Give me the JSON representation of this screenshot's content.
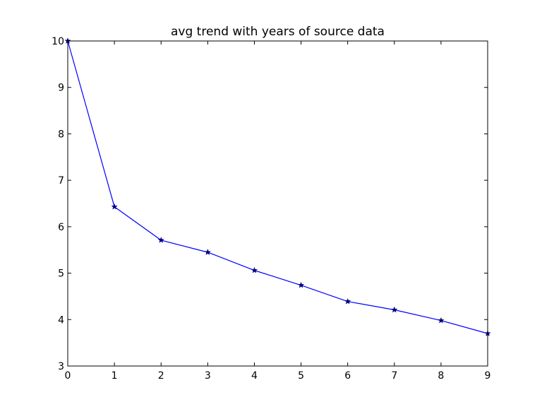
{
  "chart_data": {
    "type": "line",
    "title": "avg trend with years of source data",
    "xlabel": "",
    "ylabel": "",
    "xlim": [
      0,
      9
    ],
    "ylim": [
      3,
      10
    ],
    "x_ticks": [
      "0",
      "1",
      "2",
      "3",
      "4",
      "5",
      "6",
      "7",
      "8",
      "9"
    ],
    "y_ticks": [
      "3",
      "4",
      "5",
      "6",
      "7",
      "8",
      "9",
      "10"
    ],
    "grid": false,
    "legend": "none",
    "series": [
      {
        "x": [
          0,
          1,
          2,
          3,
          4,
          5,
          6,
          7,
          8,
          9
        ],
        "values": [
          10.0,
          6.43,
          5.71,
          5.45,
          5.06,
          4.74,
          4.39,
          4.21,
          3.98,
          3.7
        ],
        "color": "#0000ff",
        "marker": "star",
        "marker_color": "#000080"
      }
    ]
  }
}
